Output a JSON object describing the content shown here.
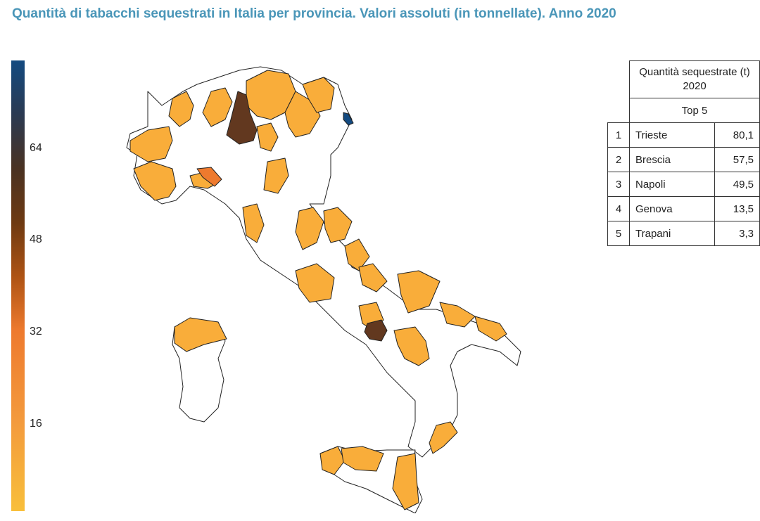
{
  "title": "Quantità di tabacchi sequestrati in Italia per provincia. Valori assoluti (in tonnellate). Anno 2020",
  "legend": {
    "ticks": [
      "64",
      "48",
      "32",
      "16"
    ],
    "colors": {
      "top": "#134a80",
      "dark": "#5a3520",
      "mid": "#ee7a2e",
      "low": "#f8bf3b"
    }
  },
  "map": {
    "fill_low": "#f9ad3a",
    "fill_dark": "#62381f",
    "fill_top": "#134a80",
    "fill_none": "#ffffff"
  },
  "table": {
    "header": "Quantità sequestrate (t) 2020",
    "subheader": "Top 5",
    "rows": [
      {
        "rank": "1",
        "name": "Trieste",
        "value": "80,1"
      },
      {
        "rank": "2",
        "name": "Brescia",
        "value": "57,5"
      },
      {
        "rank": "3",
        "name": "Napoli",
        "value": "49,5"
      },
      {
        "rank": "4",
        "name": "Genova",
        "value": "13,5"
      },
      {
        "rank": "5",
        "name": "Trapani",
        "value": "3,3"
      }
    ]
  }
}
